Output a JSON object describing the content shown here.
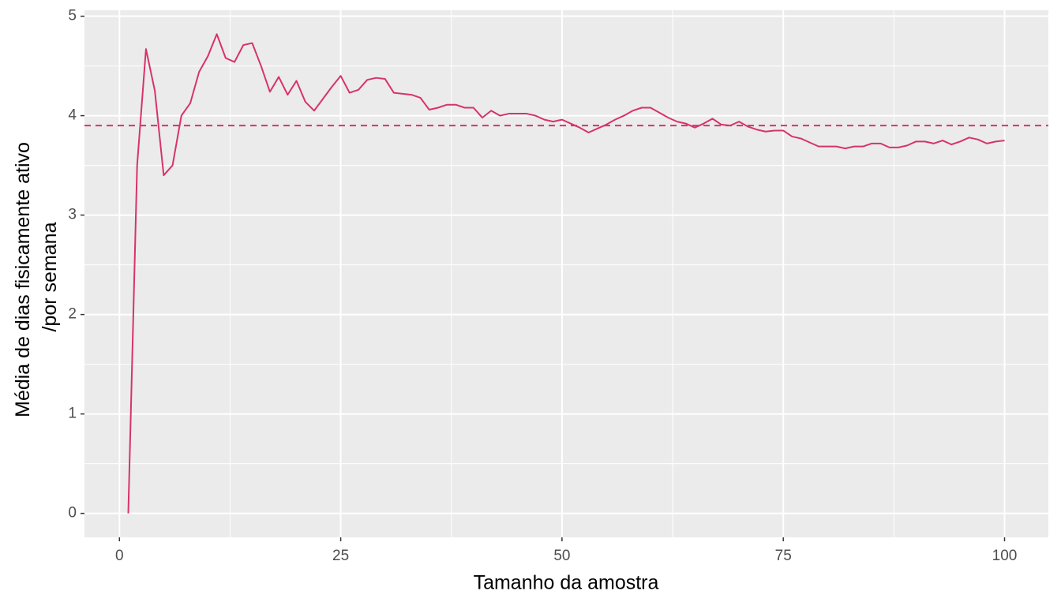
{
  "chart_data": {
    "type": "line",
    "x_label": "Tamanho da amostra",
    "y_label": [
      "Média de dias fisicamente ativo",
      "/por semana"
    ],
    "x": [
      1,
      2,
      3,
      4,
      5,
      6,
      7,
      8,
      9,
      10,
      11,
      12,
      13,
      14,
      15,
      16,
      17,
      18,
      19,
      20,
      21,
      22,
      23,
      24,
      25,
      26,
      27,
      28,
      29,
      30,
      31,
      32,
      33,
      34,
      35,
      36,
      37,
      38,
      39,
      40,
      41,
      42,
      43,
      44,
      45,
      46,
      47,
      48,
      49,
      50,
      51,
      52,
      53,
      54,
      55,
      56,
      57,
      58,
      59,
      60,
      61,
      62,
      63,
      64,
      65,
      66,
      67,
      68,
      69,
      70,
      71,
      72,
      73,
      74,
      75,
      76,
      77,
      78,
      79,
      80,
      81,
      82,
      83,
      84,
      85,
      86,
      87,
      88,
      89,
      90,
      91,
      92,
      93,
      94,
      95,
      96,
      97,
      98,
      99,
      100
    ],
    "series": [
      {
        "color": "#d6336c",
        "values": [
          0,
          3.5,
          4.67,
          4.25,
          3.4,
          3.5,
          4.0,
          4.125,
          4.44,
          4.6,
          4.82,
          4.58,
          4.54,
          4.71,
          4.73,
          4.5,
          4.24,
          4.39,
          4.21,
          4.35,
          4.14,
          4.05,
          4.17,
          4.29,
          4.4,
          4.23,
          4.26,
          4.36,
          4.38,
          4.37,
          4.23,
          4.22,
          4.21,
          4.18,
          4.06,
          4.08,
          4.11,
          4.11,
          4.08,
          4.08,
          3.98,
          4.05,
          4.0,
          4.02,
          4.02,
          4.02,
          4.0,
          3.96,
          3.94,
          3.96,
          3.92,
          3.88,
          3.83,
          3.87,
          3.91,
          3.96,
          4.0,
          4.05,
          4.08,
          4.08,
          4.03,
          3.98,
          3.94,
          3.92,
          3.88,
          3.92,
          3.97,
          3.91,
          3.9,
          3.94,
          3.89,
          3.86,
          3.84,
          3.85,
          3.85,
          3.79,
          3.77,
          3.73,
          3.69,
          3.69,
          3.69,
          3.67,
          3.69,
          3.69,
          3.72,
          3.72,
          3.68,
          3.68,
          3.7,
          3.74,
          3.74,
          3.72,
          3.75,
          3.71,
          3.74,
          3.78,
          3.76,
          3.72,
          3.74,
          3.75
        ]
      }
    ],
    "hline": {
      "value": 3.9,
      "color": "#d6336c",
      "style": "dashed"
    },
    "xlim": [
      -3.95,
      104.95
    ],
    "xticks": [
      0,
      25,
      50,
      75,
      100
    ],
    "ylim": [
      -0.241,
      5.06
    ],
    "yticks": [
      0,
      1,
      2,
      3,
      4,
      5
    ],
    "grid": true,
    "panel_background": "#ebebeb"
  }
}
